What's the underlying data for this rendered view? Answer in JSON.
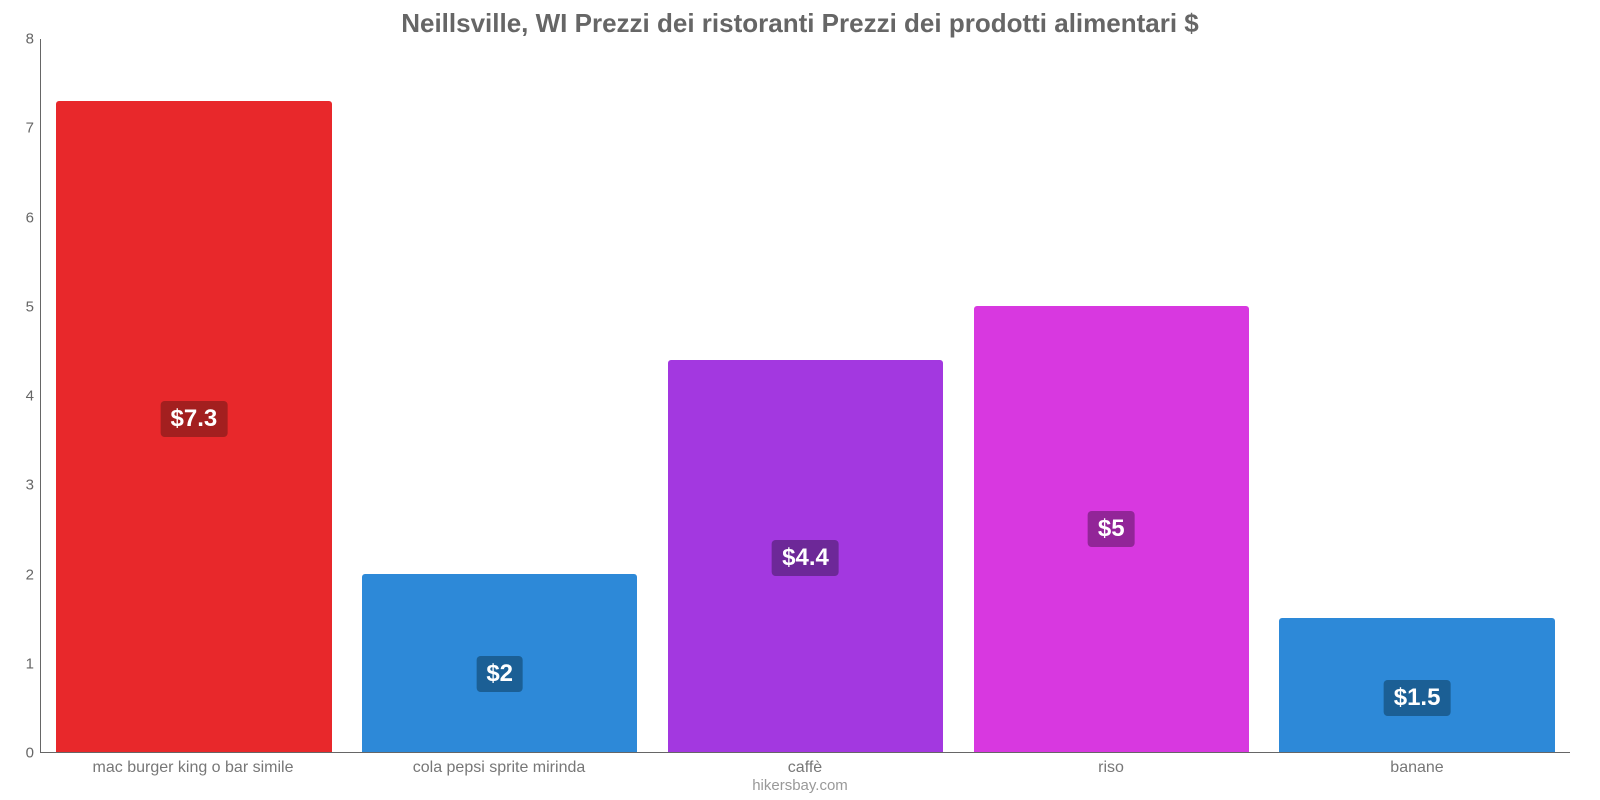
{
  "chart": {
    "type": "bar",
    "title": "Neillsville, WI Prezzi dei ristoranti Prezzi dei prodotti alimentari $",
    "title_fontsize": 26,
    "title_color": "#666666",
    "background_color": "#ffffff",
    "axis_color": "#666666",
    "tick_fontsize": 15,
    "tick_color": "#666666",
    "xlabel_fontsize": 16,
    "xlabel_color": "#777777",
    "ylim": [
      0,
      8
    ],
    "ytick_step": 1,
    "yticks": [
      "0",
      "1",
      "2",
      "3",
      "4",
      "5",
      "6",
      "7",
      "8"
    ],
    "bar_width_pct": 90,
    "value_label_fontsize": 24,
    "categories": [
      "mac burger king o bar simile",
      "cola pepsi sprite mirinda",
      "caffè",
      "riso",
      "banane"
    ],
    "values": [
      7.3,
      2,
      4.4,
      5,
      1.5
    ],
    "value_labels": [
      "$7.3",
      "$2",
      "$4.4",
      "$5",
      "$1.5"
    ],
    "bar_colors": [
      "#e8282b",
      "#2d89d8",
      "#a338e0",
      "#d838e0",
      "#2d89d8"
    ],
    "label_bg_colors": [
      "#a31f1f",
      "#1b5f95",
      "#6d2898",
      "#922598",
      "#1b5f95"
    ],
    "footer": "hikersbay.com",
    "footer_fontsize": 15,
    "footer_color": "#999999"
  }
}
